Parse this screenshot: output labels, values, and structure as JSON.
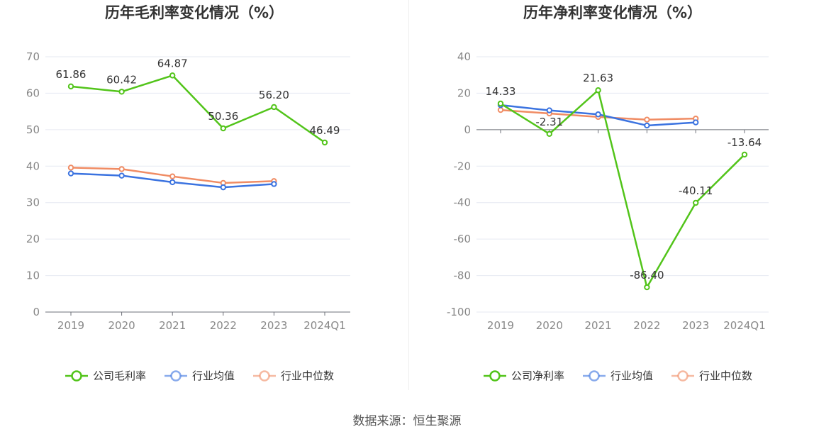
{
  "footer": {
    "source": "数据来源：恒生聚源"
  },
  "colors": {
    "company": "#52c41a",
    "industry_avg": "#3b73e0",
    "industry_median": "#f08c64",
    "grid": "#e6e9f2",
    "axis": "#888888",
    "text": "#333333"
  },
  "chart_data": [
    {
      "type": "line",
      "title": "历年毛利率变化情况（%）",
      "categories": [
        "2019",
        "2020",
        "2021",
        "2022",
        "2023",
        "2024Q1"
      ],
      "ylim": [
        0,
        70
      ],
      "yticks": [
        0,
        10,
        20,
        30,
        40,
        50,
        60,
        70
      ],
      "grid": true,
      "legend_position": "bottom",
      "series": [
        {
          "name": "公司毛利率",
          "color": "#52c41a",
          "values": [
            61.86,
            60.42,
            64.87,
            50.36,
            56.2,
            46.49
          ],
          "labels": [
            "61.86",
            "60.42",
            "64.87",
            "50.36",
            "56.20",
            "46.49"
          ],
          "show_labels": true
        },
        {
          "name": "行业均值",
          "color": "#3b73e0",
          "values": [
            38.0,
            37.4,
            35.6,
            34.2,
            35.1,
            null
          ],
          "show_labels": false
        },
        {
          "name": "行业中位数",
          "color": "#f08c64",
          "values": [
            39.6,
            39.2,
            37.2,
            35.4,
            35.9,
            null
          ],
          "show_labels": false
        }
      ]
    },
    {
      "type": "line",
      "title": "历年净利率变化情况（%）",
      "categories": [
        "2019",
        "2020",
        "2021",
        "2022",
        "2023",
        "2024Q1"
      ],
      "ylim": [
        -100,
        40
      ],
      "yticks": [
        -100,
        -80,
        -60,
        -40,
        -20,
        0,
        20,
        40
      ],
      "grid": true,
      "legend_position": "bottom",
      "series": [
        {
          "name": "公司净利率",
          "color": "#52c41a",
          "values": [
            14.33,
            -2.31,
            21.63,
            -86.4,
            -40.11,
            -13.64
          ],
          "labels": [
            "14.33",
            "-2.31",
            "21.63",
            "-86.40",
            "-40.11",
            "-13.64"
          ],
          "show_labels": true
        },
        {
          "name": "行业均值",
          "color": "#3b73e0",
          "values": [
            13.5,
            10.6,
            8.4,
            2.3,
            4.0,
            null
          ],
          "show_labels": false
        },
        {
          "name": "行业中位数",
          "color": "#f08c64",
          "values": [
            10.8,
            8.9,
            7.0,
            5.5,
            6.1,
            null
          ],
          "show_labels": false
        }
      ]
    }
  ]
}
